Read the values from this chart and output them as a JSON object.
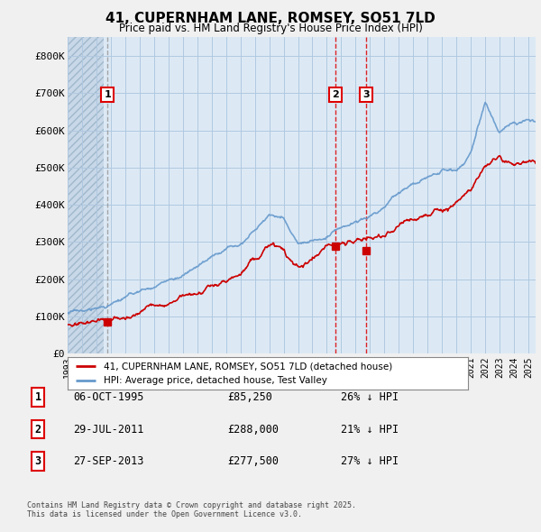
{
  "title": "41, CUPERNHAM LANE, ROMSEY, SO51 7LD",
  "subtitle": "Price paid vs. HM Land Registry's House Price Index (HPI)",
  "legend_house": "41, CUPERNHAM LANE, ROMSEY, SO51 7LD (detached house)",
  "legend_hpi": "HPI: Average price, detached house, Test Valley",
  "transactions": [
    {
      "label": "1",
      "date": "06-OCT-1995",
      "price": 85250,
      "pct": "26%",
      "x_year": 1995.76,
      "vline_style": "dashed_gray"
    },
    {
      "label": "2",
      "date": "29-JUL-2011",
      "price": 288000,
      "pct": "21%",
      "x_year": 2011.57,
      "vline_style": "dashed_red"
    },
    {
      "label": "3",
      "date": "27-SEP-2013",
      "price": 277500,
      "pct": "27%",
      "x_year": 2013.74,
      "vline_style": "dashed_red"
    }
  ],
  "footnote": "Contains HM Land Registry data © Crown copyright and database right 2025.\nThis data is licensed under the Open Government Licence v3.0.",
  "ylim": [
    0,
    850000
  ],
  "yticks": [
    0,
    100000,
    200000,
    300000,
    400000,
    500000,
    600000,
    700000,
    800000
  ],
  "ytick_labels": [
    "£0",
    "£100K",
    "£200K",
    "£300K",
    "£400K",
    "£500K",
    "£600K",
    "£700K",
    "£800K"
  ],
  "xmin": 1993,
  "xmax": 2025.5,
  "hatch_end": 1995.5,
  "background_color": "#f0f0f0",
  "plot_bg_color": "#dce9f5",
  "grid_color": "#b0c8e0",
  "house_color": "#cc0000",
  "hpi_color": "#6699cc",
  "vline_red_color": "#dd0000",
  "vline_gray_color": "#999999",
  "table_row1": [
    "1",
    "06-OCT-1995",
    "£85,250",
    "26% ↓ HPI"
  ],
  "table_row2": [
    "2",
    "29-JUL-2011",
    "£288,000",
    "21% ↓ HPI"
  ],
  "table_row3": [
    "3",
    "27-SEP-2013",
    "£277,500",
    "27% ↓ HPI"
  ]
}
